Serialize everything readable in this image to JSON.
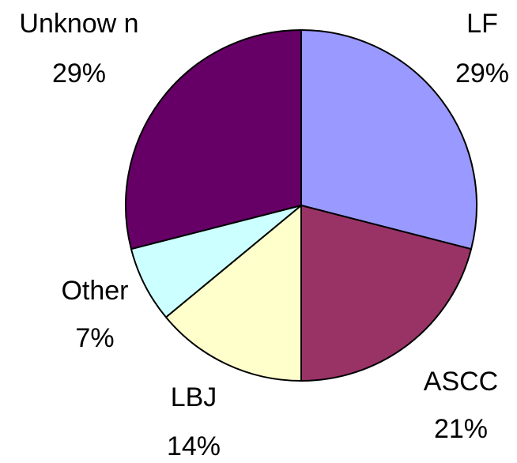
{
  "chart_data": {
    "type": "pie",
    "categories": [
      "LF",
      "ASCC",
      "LBJ",
      "Other",
      "Unknow n"
    ],
    "values": [
      29,
      21,
      14,
      7,
      29
    ],
    "value_labels": [
      "29%",
      "21%",
      "14%",
      "7%",
      "29%"
    ],
    "colors": [
      "#9999ff",
      "#993366",
      "#ffffcc",
      "#ccffff",
      "#660066"
    ]
  }
}
